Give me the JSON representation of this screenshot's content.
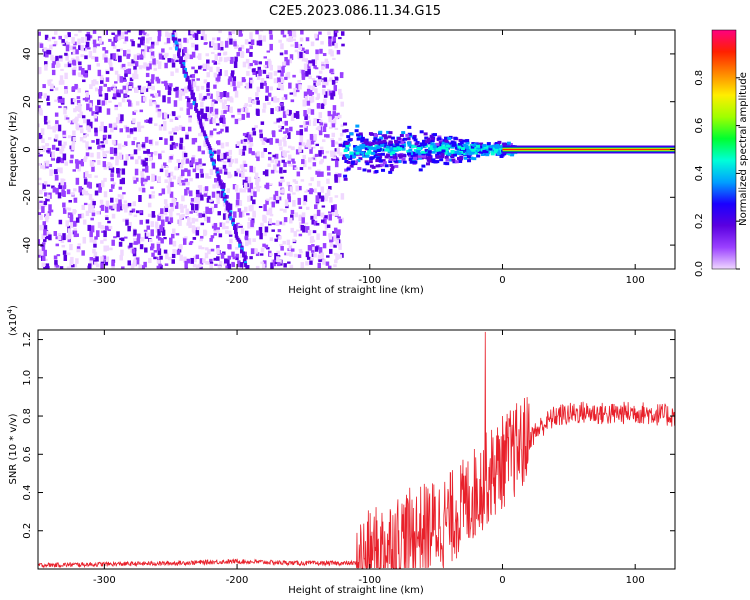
{
  "figure": {
    "title": "C2E5.2023.086.11.34.G15"
  },
  "chart_data": [
    {
      "type": "heatmap",
      "xlabel": "Height of straight line (km)",
      "ylabel": "Frequency (Hz)",
      "xlim": [
        -350,
        130
      ],
      "ylim": [
        -50,
        50
      ],
      "x_ticks": [
        -300,
        -200,
        -100,
        0,
        100
      ],
      "y_ticks": [
        -40,
        -20,
        0,
        20,
        40
      ],
      "colorbar": {
        "label": "Normalized spectral amplitude",
        "range": [
          0.0,
          1.0
        ],
        "ticks": [
          "0.0",
          "0.2",
          "0.4",
          "0.6",
          "0.8"
        ],
        "colors": [
          "#f0d8ff",
          "#9a40ff",
          "#5a00e0",
          "#1a00ff",
          "#00a0ff",
          "#00ffd8",
          "#00ff30",
          "#a0ff00",
          "#ffee00",
          "#ff8800",
          "#ff2000",
          "#ff0080"
        ]
      },
      "features": {
        "noise_band_x": [
          -350,
          -120
        ],
        "diagonal_line_endpoints": [
          [
            -248,
            48
          ],
          [
            -192,
            -50
          ]
        ],
        "turbulent_cluster_x": [
          -120,
          10
        ],
        "steady_tone_x": [
          0,
          130
        ],
        "steady_tone_freq": 0
      }
    },
    {
      "type": "line",
      "xlabel": "Height of straight line (km)",
      "ylabel": "SNR (10 * v/v)",
      "y_multiplier": "(x10",
      "y_multiplier_exp": "4",
      "y_multiplier_close": ")",
      "xlim": [
        -350,
        130
      ],
      "ylim": [
        0,
        1.25
      ],
      "x_ticks": [
        -300,
        -200,
        -100,
        0,
        100
      ],
      "y_ticks": [
        "0.2",
        "0.4",
        "0.6",
        "0.8",
        "1.0",
        "1.2"
      ],
      "line_color": "#e8202a",
      "series": [
        {
          "x": [
            -350,
            -250,
            -200,
            -150,
            -110,
            -100,
            -80,
            -60,
            -40,
            -25,
            -15,
            -5,
            0,
            10,
            20,
            30,
            40,
            60,
            80,
            100,
            130
          ],
          "y": [
            0.02,
            0.03,
            0.04,
            0.03,
            0.03,
            0.06,
            0.15,
            0.2,
            0.26,
            0.36,
            0.45,
            0.52,
            0.56,
            0.62,
            0.68,
            0.75,
            0.8,
            0.82,
            0.81,
            0.82,
            0.8
          ],
          "spike": {
            "x": -13,
            "y": 1.24
          }
        }
      ]
    }
  ]
}
